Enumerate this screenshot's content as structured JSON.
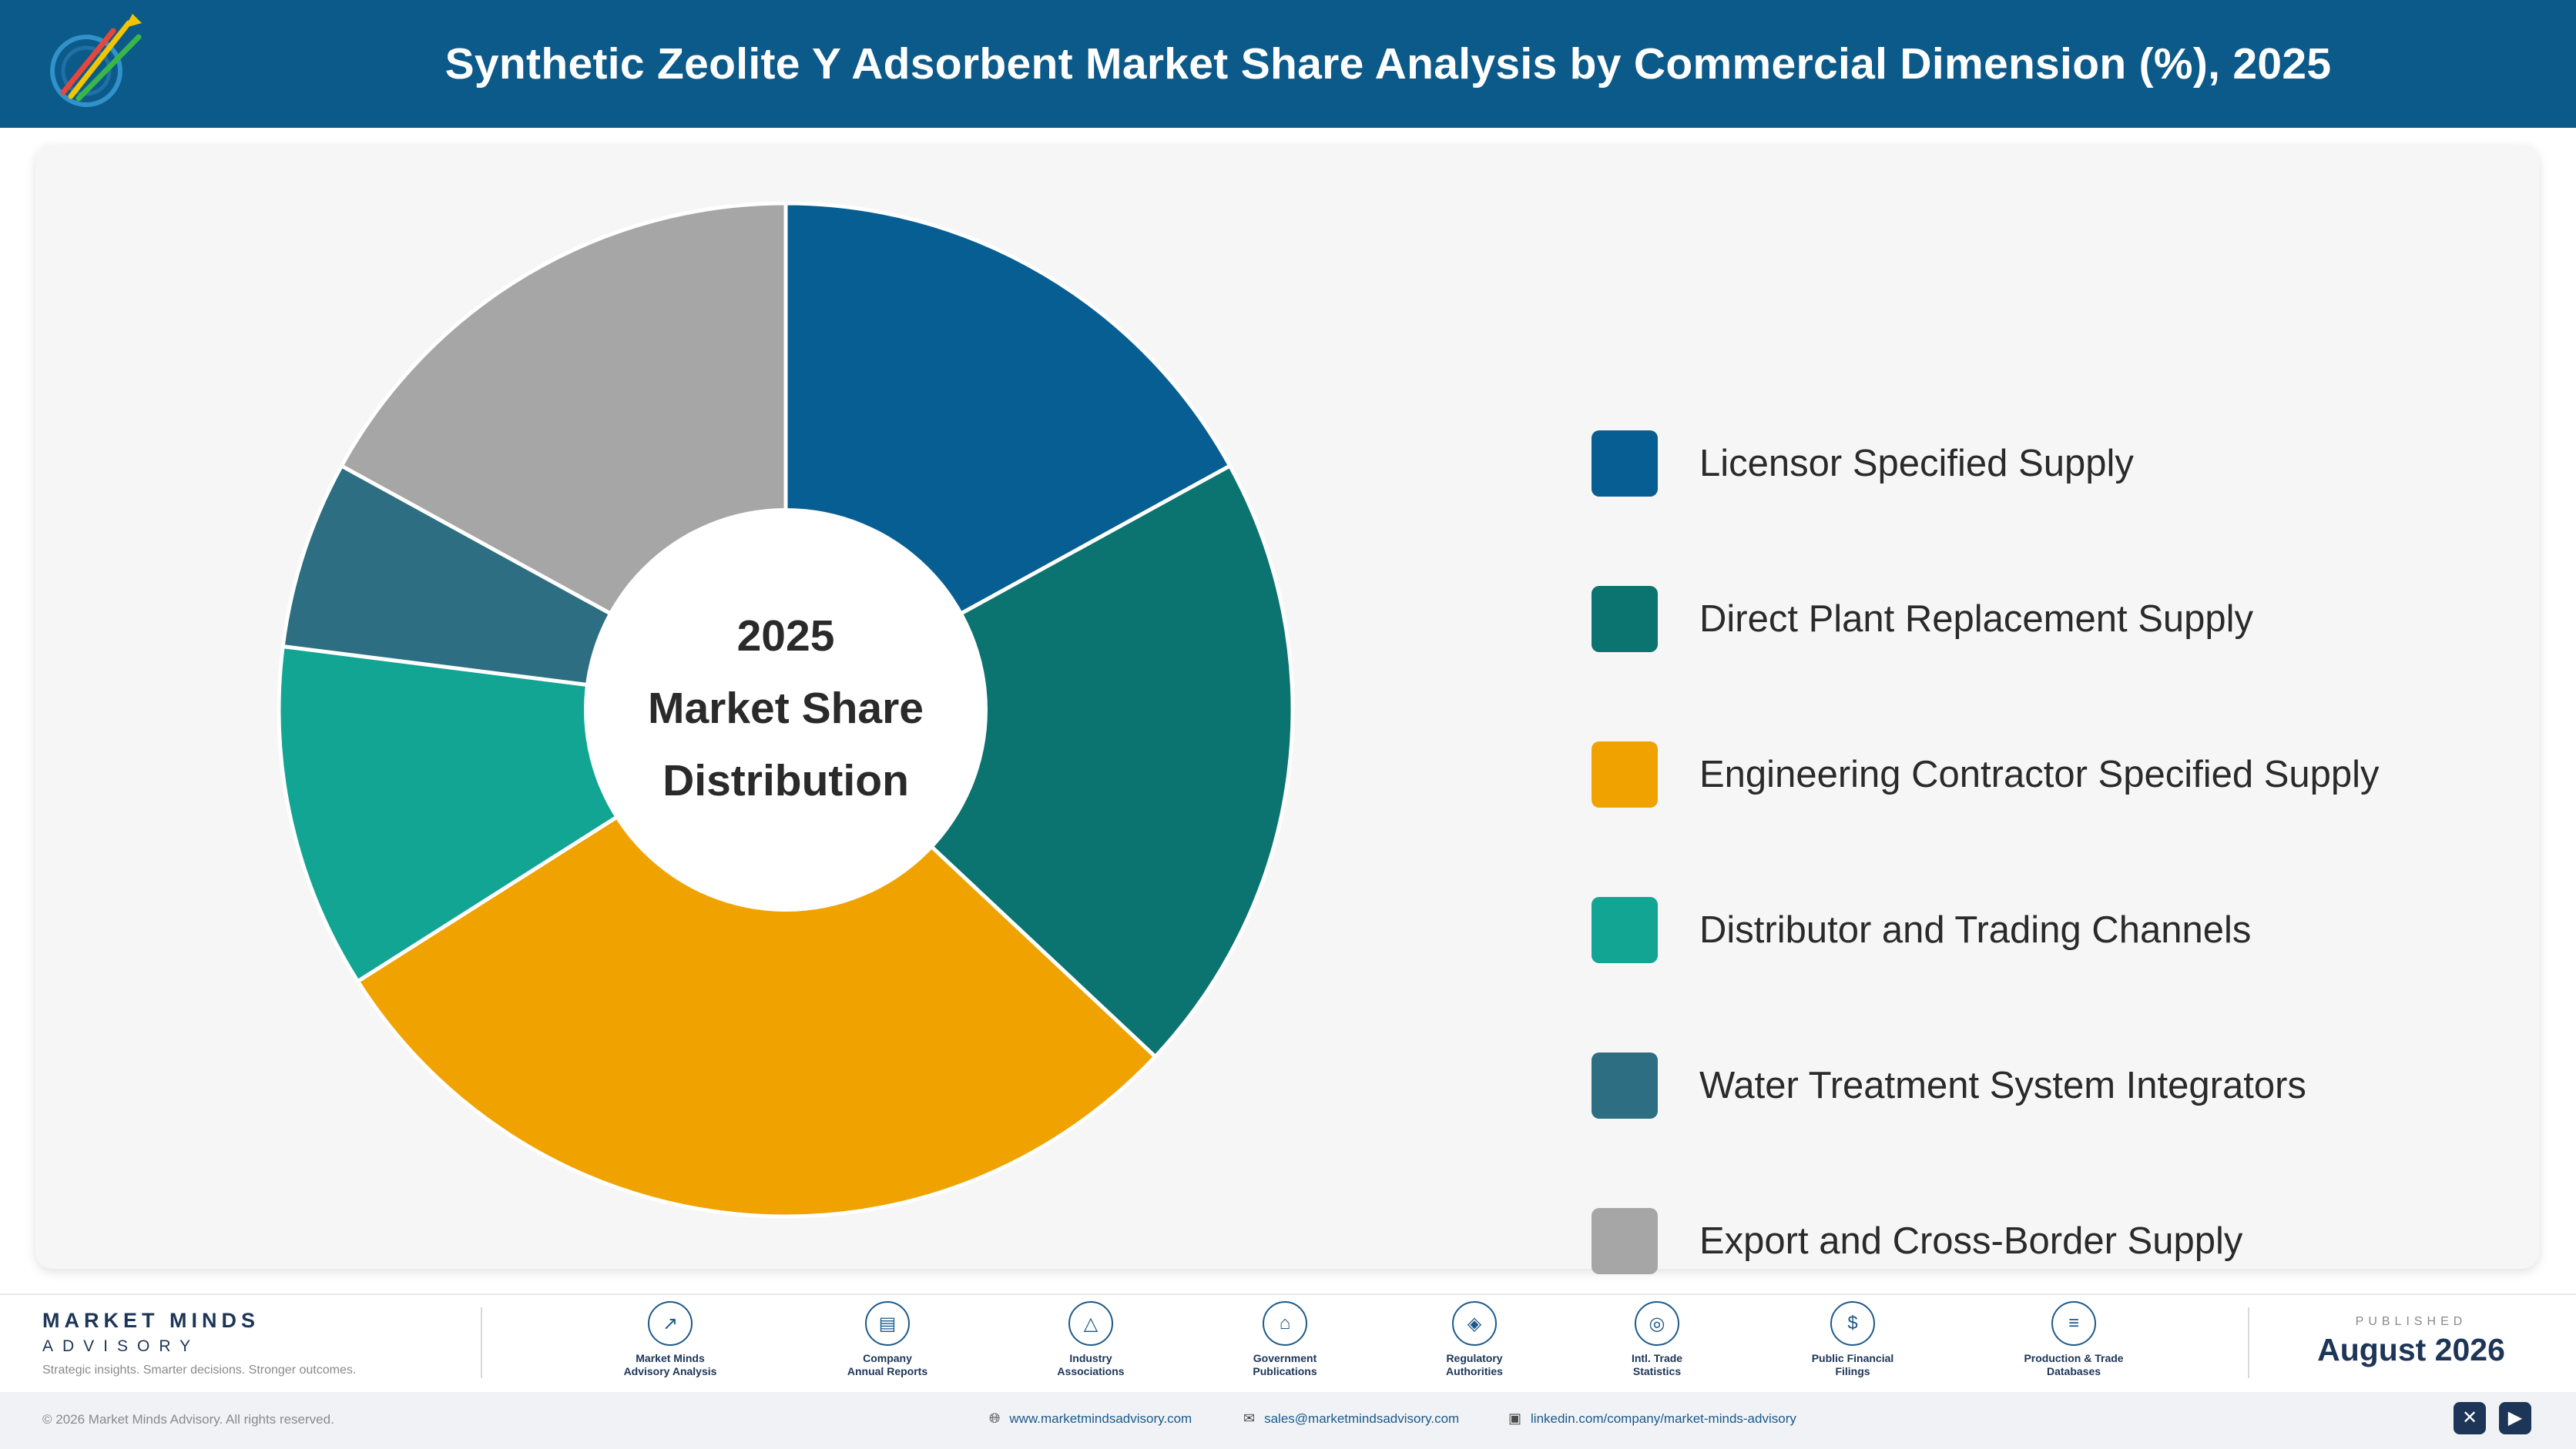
{
  "header": {
    "title": "Synthetic Zeolite Y Adsorbent Market Share Analysis by Commercial Dimension (%), 2025"
  },
  "colors": {
    "header_bg": "#0c5a8a",
    "panel_bg": "#f6f6f6"
  },
  "chart_data": {
    "type": "pie",
    "variant": "donut",
    "center_text": [
      "2025",
      "Market Share",
      "Distribution"
    ],
    "categories": [
      "Licensor Specified Supply",
      "Direct Plant Replacement Supply",
      "Engineering Contractor Specified Supply",
      "Distributor and Trading Channels",
      "Water Treatment System Integrators",
      "Export and Cross-Border Supply"
    ],
    "values": [
      17,
      20,
      29,
      11,
      6,
      17
    ],
    "colors": [
      "#075e92",
      "#0b7370",
      "#f0a300",
      "#12a594",
      "#2d6e82",
      "#a6a6a6"
    ],
    "legend_position": "right"
  },
  "footer": {
    "brand_name": "MARKET MINDS",
    "brand_sub": "ADVISORY",
    "brand_tagline": "Strategic insights. Smarter decisions. Stronger outcomes.",
    "sources": [
      {
        "label": "Market Minds\nAdvisory Analysis",
        "icon": "trend-chart-icon"
      },
      {
        "label": "Company\nAnnual Reports",
        "icon": "document-icon"
      },
      {
        "label": "Industry\nAssociations",
        "icon": "network-icon"
      },
      {
        "label": "Government\nPublications",
        "icon": "government-building-icon"
      },
      {
        "label": "Regulatory\nAuthorities",
        "icon": "shield-icon"
      },
      {
        "label": "Intl. Trade\nStatistics",
        "icon": "globe-icon"
      },
      {
        "label": "Public Financial\nFilings",
        "icon": "dollar-icon"
      },
      {
        "label": "Production & Trade\nDatabases",
        "icon": "database-icon"
      }
    ],
    "published_label": "PUBLISHED",
    "published_date": "August 2026",
    "copyright": "© 2026 Market Minds Advisory. All rights reserved.",
    "website": "www.marketmindsadvisory.com",
    "email": "sales@marketmindsadvisory.com",
    "linkedin": "linkedin.com/company/market-minds-advisory"
  }
}
